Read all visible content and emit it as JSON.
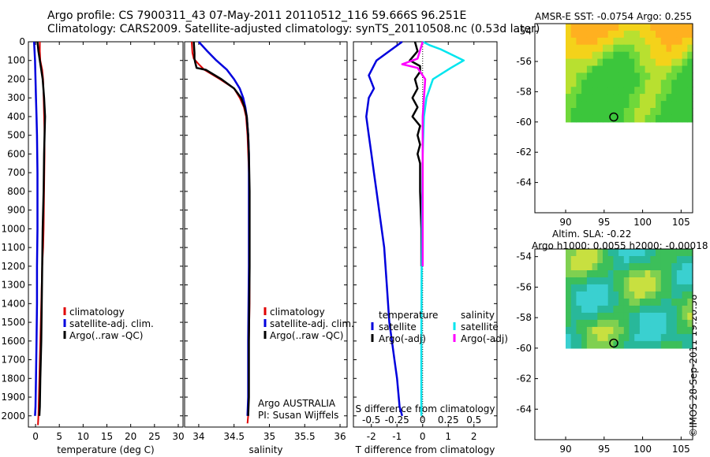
{
  "header": {
    "line1": "Argo profile: CS 7900311_43 07-May-2011 20110512_116 59.666S 96.251E",
    "line2": "Climatology: CARS2009. Satellite-adjusted climatology: synTS_20110508.nc (0.53d later)"
  },
  "footer_stamp": "©IMOS 28-Sep-2011 19:20:58",
  "colors": {
    "climatology": "#e00000",
    "satellite": "#0000dd",
    "argo": "#000000",
    "sat_salinity": "#00e5ee",
    "argo_salinity": "#ff00ff"
  },
  "chart_data": [
    {
      "type": "line",
      "xlabel": "temperature (deg C)",
      "ylim": [
        2060,
        0
      ],
      "xlim": [
        -1.5,
        31
      ],
      "xticks": [
        0,
        5,
        10,
        15,
        20,
        25,
        30
      ],
      "yticks": [
        0,
        100,
        200,
        300,
        400,
        500,
        600,
        700,
        800,
        900,
        1000,
        1100,
        1200,
        1300,
        1400,
        1500,
        1600,
        1700,
        1800,
        1900,
        2000
      ],
      "legend": [
        "climatology",
        "satellite-adj. clim.",
        "Argo(..raw -QC)"
      ],
      "series": [
        {
          "name": "climatology",
          "x": [
            0.9,
            0.9,
            1.0,
            1.4,
            1.6,
            1.7,
            1.8,
            1.9,
            1.9,
            1.8,
            1.7,
            1.6,
            1.4,
            1.3,
            1.2,
            1.1,
            1.0,
            0.9,
            0.8,
            0.7,
            0.6,
            0.5
          ],
          "y": [
            0,
            50,
            100,
            150,
            200,
            300,
            400,
            500,
            600,
            800,
            1000,
            1100,
            1200,
            1300,
            1400,
            1500,
            1600,
            1700,
            1800,
            1900,
            2000,
            2050
          ]
        },
        {
          "name": "satellite-adj. clim.",
          "x": [
            -0.3,
            -0.2,
            -0.1,
            0.0,
            0.1,
            0.2,
            0.3,
            0.4,
            0.4,
            0.4,
            0.3,
            0.3,
            0.2,
            0.1,
            0.0,
            -0.1
          ],
          "y": [
            0,
            50,
            100,
            200,
            300,
            400,
            500,
            700,
            900,
            1000,
            1200,
            1400,
            1600,
            1800,
            1950,
            2000
          ]
        },
        {
          "name": "Argo(..raw -QC)",
          "x": [
            0.4,
            0.6,
            0.9,
            1.2,
            1.5,
            1.8,
            2.0,
            1.9,
            1.8,
            1.7,
            1.5,
            1.4,
            1.3,
            1.2,
            1.0,
            0.9,
            0.8
          ],
          "y": [
            0,
            50,
            100,
            150,
            200,
            300,
            400,
            500,
            600,
            800,
            1000,
            1200,
            1400,
            1600,
            1800,
            1950,
            2000
          ]
        }
      ]
    },
    {
      "type": "line",
      "xlabel": "salinity",
      "ylim": [
        2060,
        0
      ],
      "xlim": [
        33.8,
        36.1
      ],
      "xticks": [
        34,
        34.5,
        35,
        35.5,
        36
      ],
      "xticklabels": [
        "34",
        "34.5",
        "35",
        "35.5",
        "36"
      ],
      "legend": [
        "climatology",
        "satellite-adj. clim.",
        "Argo(..raw -QC)"
      ],
      "annotations": [
        "Argo AUSTRALIA",
        "PI: Susan Wijffels"
      ],
      "series": [
        {
          "name": "climatology",
          "x": [
            33.9,
            33.91,
            33.93,
            34.0,
            34.08,
            34.3,
            34.5,
            34.58,
            34.64,
            34.67,
            34.69,
            34.7,
            34.71,
            34.72,
            34.72,
            34.72,
            34.71,
            34.71,
            34.7,
            34.7,
            34.69
          ],
          "y": [
            0,
            60,
            90,
            120,
            150,
            200,
            250,
            300,
            350,
            400,
            500,
            600,
            700,
            900,
            1200,
            1400,
            1600,
            1800,
            1900,
            2000,
            2040
          ]
        },
        {
          "name": "satellite-adj. clim.",
          "x": [
            34.0,
            34.12,
            34.25,
            34.4,
            34.5,
            34.58,
            34.63,
            34.66,
            34.68,
            34.7,
            34.71,
            34.71,
            34.71,
            34.7,
            34.7,
            34.69
          ],
          "y": [
            0,
            50,
            100,
            150,
            200,
            250,
            300,
            350,
            400,
            500,
            600,
            800,
            1200,
            1600,
            1900,
            2000
          ]
        },
        {
          "name": "Argo(..raw -QC)",
          "x": [
            33.93,
            33.94,
            33.94,
            33.95,
            33.97,
            34.1,
            34.32,
            34.5,
            34.6,
            34.65,
            34.68,
            34.7,
            34.71,
            34.72,
            34.72,
            34.71,
            34.71,
            34.7
          ],
          "y": [
            0,
            60,
            90,
            110,
            140,
            150,
            200,
            250,
            300,
            350,
            400,
            500,
            600,
            800,
            1200,
            1600,
            1900,
            2000
          ]
        }
      ]
    },
    {
      "type": "line",
      "xlabel": "T difference from climatology",
      "top_xlabel": "S difference from climatology",
      "ylim": [
        2060,
        0
      ],
      "xlim": [
        -2.7,
        2.9
      ],
      "xticks": [
        -2,
        -1,
        0,
        1,
        2
      ],
      "top_xticks": [
        -0.5,
        -0.25,
        0,
        0.25,
        0.5
      ],
      "top_xticklabels": [
        "-0.5",
        "-0.25",
        "0",
        "0.25",
        "0.5"
      ],
      "legend_groups": [
        {
          "title": "temperature",
          "items": [
            "satellite",
            "Argo(-adj)"
          ]
        },
        {
          "title": "salinity",
          "items": [
            "satellite",
            "Argo(-adj)"
          ]
        }
      ],
      "series": [
        {
          "name": "temperature satellite",
          "x": [
            -0.8,
            -1.4,
            -1.8,
            -2.1,
            -1.9,
            -2.1,
            -2.2,
            -2.1,
            -2.0,
            -1.9,
            -1.8,
            -1.7,
            -1.5,
            -1.4,
            -1.3,
            -1.2,
            -1.1,
            -1.0,
            -0.9,
            -0.8
          ],
          "y": [
            0,
            60,
            100,
            180,
            250,
            300,
            400,
            500,
            600,
            700,
            800,
            900,
            1100,
            1300,
            1500,
            1600,
            1700,
            1800,
            1950,
            2000
          ]
        },
        {
          "name": "temperature Argo(-adj)",
          "x": [
            -0.3,
            -0.2,
            -0.5,
            -0.1,
            -0.1,
            -0.3,
            -0.2,
            -0.4,
            -0.2,
            -0.4,
            -0.1,
            -0.2,
            -0.1,
            -0.2,
            -0.1,
            -0.1,
            -0.1,
            -0.05,
            -0.05
          ],
          "y": [
            0,
            50,
            100,
            130,
            160,
            200,
            250,
            300,
            350,
            400,
            450,
            500,
            550,
            600,
            650,
            700,
            800,
            1000,
            1200
          ]
        },
        {
          "name": "salinity satellite",
          "x": [
            0.0,
            0.3,
            0.7,
            1.0,
            1.3,
            1.6,
            1.1,
            0.4,
            0.15,
            0.05,
            0.0,
            -0.02,
            -0.04,
            -0.05,
            -0.05,
            -0.05
          ],
          "y": [
            0,
            20,
            40,
            60,
            80,
            100,
            140,
            200,
            300,
            400,
            600,
            900,
            1200,
            1600,
            1900,
            2000
          ]
        },
        {
          "name": "salinity Argo(-adj)",
          "x": [
            0.0,
            -0.2,
            -0.8,
            -0.2,
            0.1,
            0.0,
            0.0
          ],
          "y": [
            0,
            90,
            120,
            140,
            200,
            400,
            1200
          ]
        }
      ]
    },
    {
      "type": "heatmap",
      "title": "AMSR-E SST: -0.0754  Argo: 0.255",
      "xlim": [
        86,
        106.5
      ],
      "ylim": [
        -66,
        -53.5
      ],
      "xticks": [
        90,
        95,
        100,
        105
      ],
      "yticks": [
        -54,
        -56,
        -58,
        -60,
        -62,
        -64
      ],
      "data_extent": {
        "x": [
          90,
          106.5
        ],
        "y": [
          -60,
          -53.5
        ]
      },
      "argo_marker": {
        "x": 96.25,
        "y": -59.67
      }
    },
    {
      "type": "heatmap",
      "title": "Altim. SLA: -0.22",
      "subtitle": "Argo h1000: 0.0055  h2000: -0.00018",
      "xlim": [
        86,
        106.5
      ],
      "ylim": [
        -66,
        -53.5
      ],
      "xticks": [
        90,
        95,
        100,
        105
      ],
      "yticks": [
        -54,
        -56,
        -58,
        -60,
        -62,
        -64
      ],
      "data_extent": {
        "x": [
          90,
          106.5
        ],
        "y": [
          -60,
          -53.5
        ]
      },
      "argo_marker": {
        "x": 96.25,
        "y": -59.67
      }
    }
  ]
}
